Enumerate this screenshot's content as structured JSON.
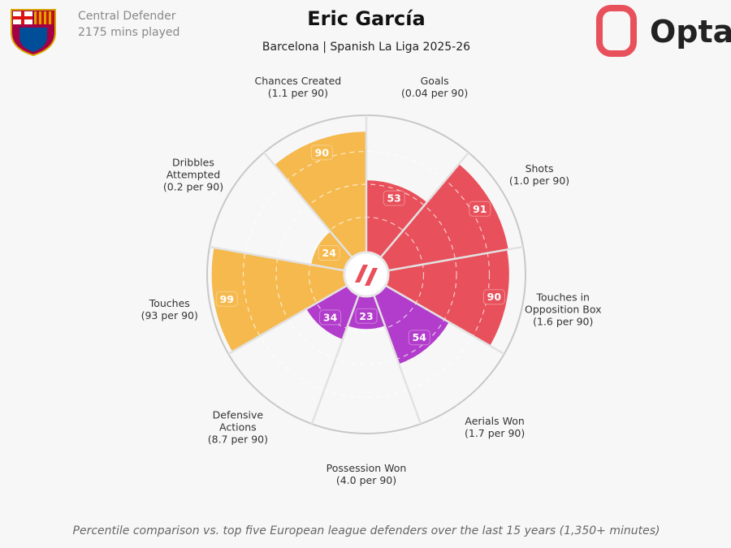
{
  "header": {
    "position": "Central Defender",
    "minutes": "2175 mins played",
    "brand": "Opta"
  },
  "chart_data": {
    "type": "pizza",
    "title": "Eric García",
    "subtitle": "Barcelona | Spanish La Liga 2025-26",
    "categories": [
      "Goals",
      "Shots",
      "Touches in Opposition Box",
      "Aerials Won",
      "Possession Won",
      "Defensive Actions",
      "Touches",
      "Dribbles Attempted",
      "Chances Created"
    ],
    "category_details": [
      "(0.04 per 90)",
      "(1.0 per 90)",
      "(1.6 per 90)",
      "(1.7 per 90)",
      "(4.0 per 90)",
      "(8.7 per 90)",
      "(93 per 90)",
      "(0.2 per 90)",
      "(1.1 per 90)"
    ],
    "values": [
      53,
      91,
      90,
      54,
      23,
      34,
      99,
      24,
      90
    ],
    "colors": [
      "#e8505b",
      "#e8505b",
      "#e8505b",
      "#b23ccb",
      "#b23ccb",
      "#b23ccb",
      "#f5b94e",
      "#f5b94e",
      "#f5b94e"
    ],
    "ylim": [
      0,
      100
    ],
    "note": "Percentile comparison vs. top five European league defenders over the last 15 years (1,350+ minutes)"
  }
}
